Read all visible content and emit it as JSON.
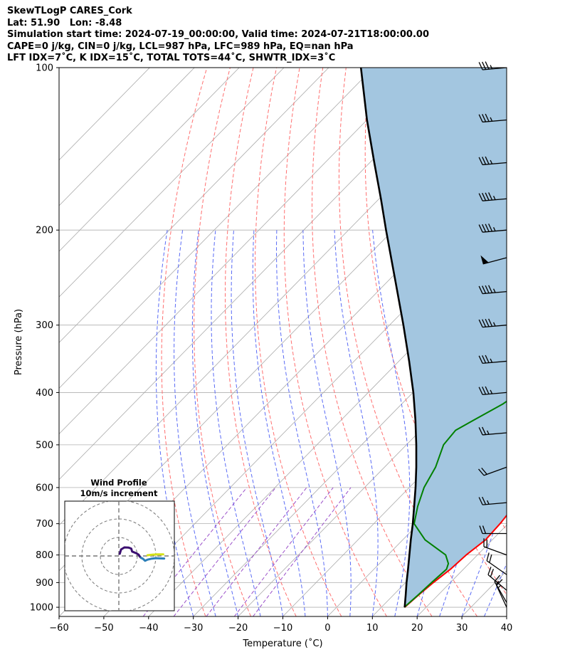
{
  "header": {
    "line1": "SkewTLogP CARES_Cork",
    "line2": "Lat: 51.90   Lon: -8.48",
    "line3": "Simulation start time: 2024-07-19_00:00:00, Valid time: 2024-07-21T18:00:00.00",
    "line4": "CAPE=0 j/kg, CIN=0 j/kg, LCL=987 hPa, LFC=989 hPa, EQ=nan hPa",
    "line5": "LFT IDX=7˚C, K IDX=15˚C, TOTAL TOTS=44˚C, SHWTR_IDX=3˚C"
  },
  "chart_data": {
    "type": "line",
    "xlabel": "Temperature (˚C)",
    "ylabel": "Pressure (hPa)",
    "xlim": [
      -60,
      40
    ],
    "ylim": [
      1040,
      100
    ],
    "y_scale": "log",
    "skew": true,
    "grid": true,
    "x_ticks": [
      "−60",
      "−50",
      "−40",
      "−30",
      "−20",
      "−10",
      "0",
      "10",
      "20",
      "30",
      "40"
    ],
    "y_ticks": [
      "100",
      "200",
      "300",
      "400",
      "500",
      "600",
      "700",
      "800",
      "900",
      "1000"
    ],
    "series": [
      {
        "role": "temperature",
        "color": "#ff0000",
        "points": [
          [
            1000,
            15.2
          ],
          [
            950,
            15.6
          ],
          [
            900,
            16.2
          ],
          [
            850,
            17.1
          ],
          [
            800,
            17.5
          ],
          [
            750,
            18.5
          ],
          [
            700,
            18.2
          ],
          [
            650,
            17.5
          ],
          [
            600,
            16.0
          ],
          [
            550,
            14.5
          ],
          [
            500,
            13.3
          ],
          [
            450,
            12.3
          ],
          [
            400,
            11.4
          ],
          [
            350,
            10.0
          ],
          [
            300,
            9.1
          ],
          [
            250,
            9.2
          ],
          [
            220,
            10.4
          ],
          [
            200,
            13.4
          ],
          [
            180,
            15.5
          ],
          [
            160,
            17.8
          ],
          [
            140,
            18.3
          ],
          [
            120,
            18.8
          ],
          [
            110,
            19.5
          ],
          [
            100,
            20.0
          ]
        ]
      },
      {
        "role": "dewpoint",
        "color": "#008000",
        "points": [
          [
            1000,
            15.1
          ],
          [
            950,
            15.5
          ],
          [
            900,
            15.8
          ],
          [
            850,
            16.2
          ],
          [
            830,
            15.4
          ],
          [
            800,
            12.9
          ],
          [
            780,
            9.8
          ],
          [
            750,
            5.0
          ],
          [
            700,
            -1.0
          ],
          [
            650,
            -4.0
          ],
          [
            600,
            -6.7
          ],
          [
            550,
            -8.6
          ],
          [
            500,
            -11.7
          ],
          [
            470,
            -12.2
          ],
          [
            450,
            -10.4
          ],
          [
            420,
            -7.4
          ],
          [
            400,
            -6.2
          ],
          [
            350,
            -3.2
          ],
          [
            300,
            -1.3
          ],
          [
            260,
            -0.9
          ],
          [
            230,
            0.5
          ],
          [
            210,
            2.2
          ],
          [
            190,
            3.0
          ],
          [
            170,
            8.1
          ],
          [
            150,
            12.2
          ],
          [
            130,
            16.1
          ],
          [
            115,
            18.3
          ],
          [
            100,
            22.0
          ]
        ]
      },
      {
        "role": "parcel",
        "color": "#000000",
        "points": [
          [
            1000,
            15.2
          ],
          [
            950,
            12.8
          ],
          [
            900,
            10.2
          ],
          [
            850,
            7.6
          ],
          [
            800,
            4.8
          ],
          [
            750,
            1.8
          ],
          [
            700,
            -1.3
          ],
          [
            650,
            -4.8
          ],
          [
            600,
            -8.6
          ],
          [
            550,
            -12.9
          ],
          [
            500,
            -17.8
          ],
          [
            450,
            -23.4
          ],
          [
            400,
            -29.9
          ],
          [
            350,
            -37.7
          ],
          [
            300,
            -46.9
          ],
          [
            250,
            -58.0
          ],
          [
            200,
            -71.6
          ],
          [
            175,
            -79.6
          ],
          [
            150,
            -89.0
          ],
          [
            125,
            -100.0
          ],
          [
            100,
            -112.8
          ]
        ]
      }
    ],
    "wind_barbs": [
      {
        "p": 100,
        "speed_kt": 35,
        "dir_deg": 265
      },
      {
        "p": 125,
        "speed_kt": 35,
        "dir_deg": 265
      },
      {
        "p": 150,
        "speed_kt": 35,
        "dir_deg": 265
      },
      {
        "p": 175,
        "speed_kt": 45,
        "dir_deg": 265
      },
      {
        "p": 200,
        "speed_kt": 45,
        "dir_deg": 265
      },
      {
        "p": 225,
        "speed_kt": 50,
        "dir_deg": 255
      },
      {
        "p": 260,
        "speed_kt": 45,
        "dir_deg": 265
      },
      {
        "p": 300,
        "speed_kt": 45,
        "dir_deg": 265
      },
      {
        "p": 350,
        "speed_kt": 35,
        "dir_deg": 265
      },
      {
        "p": 400,
        "speed_kt": 35,
        "dir_deg": 265
      },
      {
        "p": 475,
        "speed_kt": 25,
        "dir_deg": 265
      },
      {
        "p": 550,
        "speed_kt": 20,
        "dir_deg": 250
      },
      {
        "p": 640,
        "speed_kt": 25,
        "dir_deg": 265
      },
      {
        "p": 730,
        "speed_kt": 20,
        "dir_deg": 270
      },
      {
        "p": 800,
        "speed_kt": 20,
        "dir_deg": 290
      },
      {
        "p": 870,
        "speed_kt": 20,
        "dir_deg": 305
      },
      {
        "p": 930,
        "speed_kt": 20,
        "dir_deg": 310
      },
      {
        "p": 980,
        "speed_kt": 15,
        "dir_deg": 330
      },
      {
        "p": 1000,
        "speed_kt": 15,
        "dir_deg": 335
      }
    ],
    "hodograph": {
      "title": "Wind Profile",
      "subtitle": "10m/s increment",
      "rings_ms": [
        10,
        20,
        30
      ],
      "traces": [
        {
          "color": "#3b0f70",
          "points": [
            [
              0.5,
              1.2
            ],
            [
              1.2,
              3.5
            ],
            [
              3.0,
              4.6
            ],
            [
              5.3,
              4.5
            ],
            [
              6.7,
              4.0
            ],
            [
              7.2,
              2.4
            ],
            [
              9.4,
              1.5
            ],
            [
              10.7,
              0.7
            ],
            [
              11.5,
              -0.5
            ],
            [
              12.0,
              -1.0
            ]
          ]
        },
        {
          "color": "#2c7fb8",
          "points": [
            [
              12.0,
              -1.0
            ],
            [
              13.0,
              -1.5
            ],
            [
              14.2,
              -2.6
            ],
            [
              15.5,
              -2.0
            ],
            [
              17.5,
              -1.5
            ],
            [
              20.0,
              -1.2
            ],
            [
              22.0,
              -1.3
            ],
            [
              24.5,
              -1.4
            ]
          ]
        },
        {
          "color": "#d5e21a",
          "points": [
            [
              15.5,
              0.4
            ],
            [
              18.0,
              0.7
            ],
            [
              21.0,
              0.9
            ],
            [
              24.0,
              0.9
            ]
          ]
        }
      ]
    }
  },
  "colors": {
    "temperature": "#ff0000",
    "dewpoint": "#008000",
    "parcel": "#000000",
    "cape_fill": "#a3c6e0",
    "dry_adiabat": "#ff6f6f",
    "moist_adiabat": "#5a6bf5",
    "mixing_ratio": "#9a4fc9",
    "isotherm": "#aaaaaa"
  }
}
